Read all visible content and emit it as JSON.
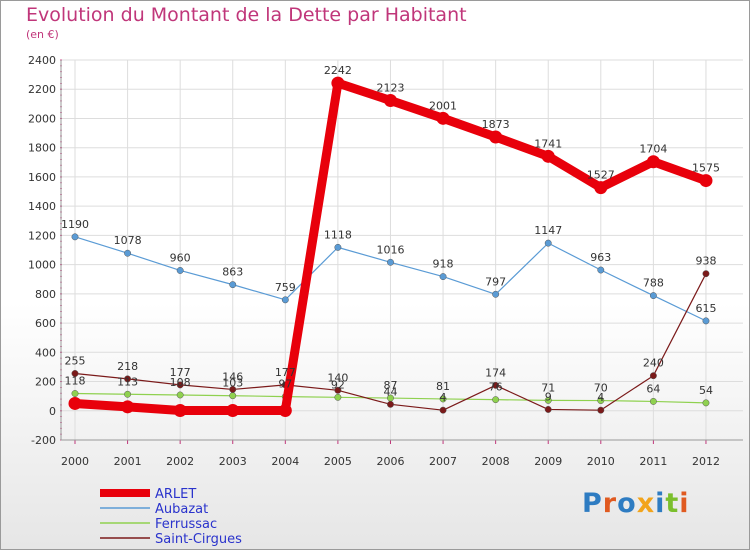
{
  "title": "Evolution du Montant de la Dette par Habitant",
  "subtitle": "(en €)",
  "logo": "Proxiti",
  "chart_data": {
    "type": "line",
    "x": [
      "2000",
      "2001",
      "2002",
      "2003",
      "2004",
      "2005",
      "2006",
      "2007",
      "2008",
      "2009",
      "2010",
      "2011",
      "2012"
    ],
    "ylim": [
      -200,
      2400
    ],
    "yticks": [
      "-200",
      "0",
      "200",
      "400",
      "600",
      "800",
      "1000",
      "1200",
      "1400",
      "1600",
      "1800",
      "2000",
      "2200",
      "2400"
    ],
    "grid": true,
    "legend_position": "bottom-left",
    "series": [
      {
        "name": "ARLET",
        "color": "#e8000b",
        "values": [
          50,
          27,
          2,
          2,
          2,
          2242,
          2123,
          2001,
          1873,
          1741,
          1527,
          1704,
          1575
        ],
        "labels": [
          "",
          "",
          "",
          "",
          "",
          "2242",
          "2123",
          "2001",
          "1873",
          "1741",
          "1527",
          "1704",
          "1575"
        ]
      },
      {
        "name": "Aubazat",
        "color": "#5a9bd5",
        "values": [
          1190,
          1078,
          960,
          863,
          759,
          1118,
          1016,
          918,
          797,
          1147,
          963,
          788,
          615
        ],
        "labels": [
          "1190",
          "1078",
          "960",
          "863",
          "759",
          "1118",
          "1016",
          "918",
          "797",
          "1147",
          "963",
          "788",
          "615"
        ]
      },
      {
        "name": "Ferrussac",
        "color": "#8fd14f",
        "values": [
          118,
          113,
          108,
          103,
          97,
          92,
          87,
          81,
          76,
          71,
          70,
          64,
          54
        ],
        "labels": [
          "118",
          "113",
          "108",
          "103",
          "97",
          "92",
          "87",
          "81",
          "76",
          "71",
          "70",
          "64",
          "54"
        ]
      },
      {
        "name": "Saint-Cirgues",
        "color": "#7b1a1a",
        "values": [
          255,
          218,
          177,
          146,
          177,
          140,
          44,
          4,
          174,
          9,
          4,
          240,
          938
        ],
        "labels": [
          "255",
          "218",
          "177",
          "146",
          "177",
          "140",
          "44",
          "4",
          "174",
          "9",
          "4",
          "240",
          "938"
        ]
      }
    ]
  }
}
